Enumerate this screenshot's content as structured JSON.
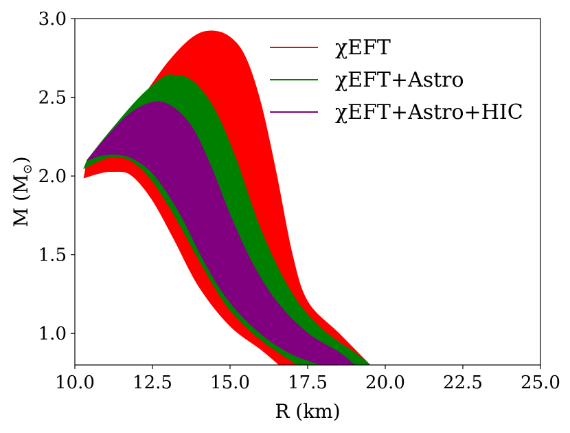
{
  "chart_data": {
    "type": "area",
    "title": "",
    "xlabel": "R (km)",
    "ylabel_main": "M (M",
    "ylabel_sub": "⊙",
    "ylabel_close": ")",
    "xlim": [
      10.0,
      25.0
    ],
    "ylim": [
      0.8,
      3.0
    ],
    "xticks": [
      "10.0",
      "12.5",
      "15.0",
      "17.5",
      "20.0",
      "22.5",
      "25.0"
    ],
    "xtick_values": [
      10.0,
      12.5,
      15.0,
      17.5,
      20.0,
      22.5,
      25.0
    ],
    "yticks": [
      "1.0",
      "1.5",
      "2.0",
      "2.5",
      "3.0"
    ],
    "ytick_values": [
      1.0,
      1.5,
      2.0,
      2.5,
      3.0
    ],
    "legend_position": "top-right",
    "series": [
      {
        "name": "χEFT",
        "legend_label": "χEFT",
        "color": "#ff0000",
        "upper_envelope": [
          [
            10.4,
            2.1
          ],
          [
            11.0,
            2.22
          ],
          [
            12.0,
            2.45
          ],
          [
            13.0,
            2.72
          ],
          [
            13.8,
            2.88
          ],
          [
            14.4,
            2.92
          ],
          [
            15.0,
            2.88
          ],
          [
            15.5,
            2.75
          ],
          [
            16.0,
            2.45
          ],
          [
            16.5,
            2.0
          ],
          [
            17.0,
            1.5
          ],
          [
            17.5,
            1.2
          ],
          [
            18.5,
            1.0
          ],
          [
            19.5,
            0.8
          ]
        ],
        "lower_envelope": [
          [
            10.3,
            1.99
          ],
          [
            10.8,
            2.02
          ],
          [
            11.2,
            2.03
          ],
          [
            11.8,
            2.01
          ],
          [
            12.5,
            1.85
          ],
          [
            13.2,
            1.6
          ],
          [
            14.0,
            1.3
          ],
          [
            15.0,
            1.05
          ],
          [
            16.0,
            0.9
          ],
          [
            16.6,
            0.8
          ]
        ]
      },
      {
        "name": "χEFT+Astro",
        "legend_label": "χEFT+Astro",
        "color": "#008000",
        "upper_envelope": [
          [
            10.4,
            2.1
          ],
          [
            11.0,
            2.25
          ],
          [
            12.0,
            2.48
          ],
          [
            12.8,
            2.62
          ],
          [
            13.2,
            2.64
          ],
          [
            13.8,
            2.6
          ],
          [
            14.5,
            2.42
          ],
          [
            15.2,
            2.1
          ],
          [
            16.0,
            1.65
          ],
          [
            17.0,
            1.25
          ],
          [
            18.0,
            1.02
          ],
          [
            19.0,
            0.88
          ],
          [
            19.5,
            0.8
          ]
        ],
        "lower_envelope": [
          [
            10.3,
            2.05
          ],
          [
            10.8,
            2.1
          ],
          [
            11.2,
            2.12
          ],
          [
            11.8,
            2.1
          ],
          [
            12.5,
            1.97
          ],
          [
            13.3,
            1.72
          ],
          [
            14.2,
            1.4
          ],
          [
            15.0,
            1.15
          ],
          [
            16.0,
            0.96
          ],
          [
            17.2,
            0.8
          ]
        ]
      },
      {
        "name": "χEFT+Astro+HIC",
        "legend_label": "χEFT+Astro+HIC",
        "color": "#800080",
        "upper_envelope": [
          [
            10.4,
            2.1
          ],
          [
            11.0,
            2.24
          ],
          [
            11.8,
            2.4
          ],
          [
            12.6,
            2.47
          ],
          [
            13.2,
            2.43
          ],
          [
            13.8,
            2.3
          ],
          [
            14.4,
            2.05
          ],
          [
            15.0,
            1.75
          ],
          [
            15.7,
            1.45
          ],
          [
            16.5,
            1.2
          ],
          [
            17.5,
            1.0
          ],
          [
            18.5,
            0.88
          ],
          [
            19.0,
            0.8
          ]
        ],
        "lower_envelope": [
          [
            10.4,
            2.1
          ],
          [
            10.8,
            2.13
          ],
          [
            11.3,
            2.14
          ],
          [
            11.9,
            2.11
          ],
          [
            12.6,
            2.0
          ],
          [
            13.4,
            1.76
          ],
          [
            14.2,
            1.45
          ],
          [
            15.0,
            1.2
          ],
          [
            16.0,
            1.0
          ],
          [
            17.0,
            0.87
          ],
          [
            18.0,
            0.8
          ]
        ]
      }
    ]
  }
}
